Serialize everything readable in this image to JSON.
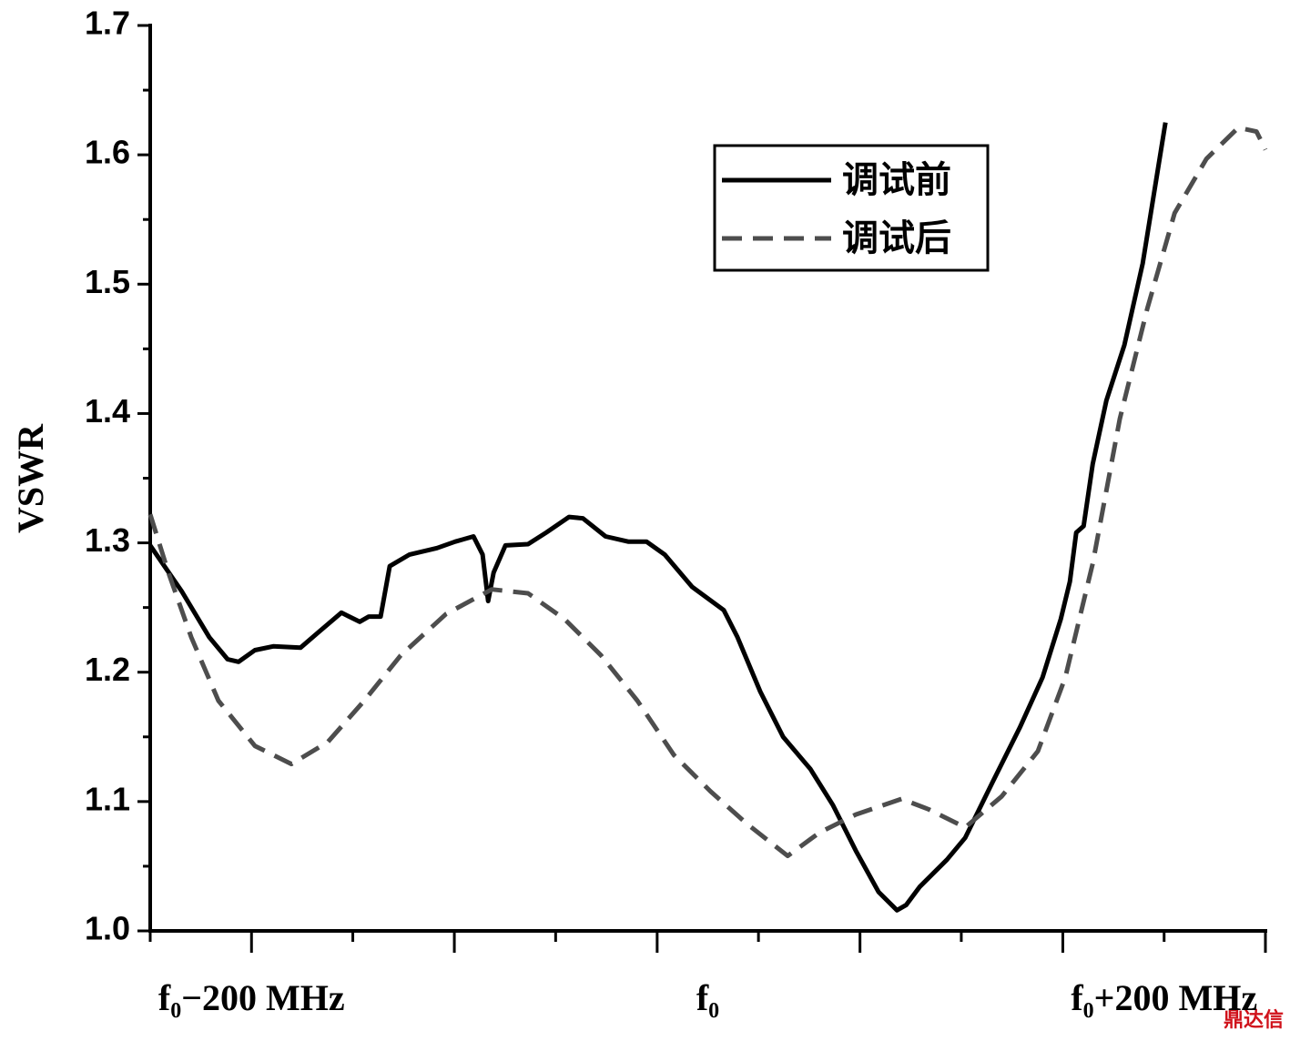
{
  "chart_data": {
    "type": "line",
    "y_label": "VSWR",
    "xlim": [
      -244.4,
      244.4
    ],
    "ylim": [
      1.0,
      1.7
    ],
    "yticks": [
      {
        "value": 1.0,
        "label": "1.0"
      },
      1.1,
      1.2,
      1.3,
      1.4,
      1.5,
      1.6,
      1.7
    ],
    "yminor_ticks": [
      1.05,
      1.15,
      1.25,
      1.35,
      1.45,
      1.55,
      1.65
    ],
    "xticks": [
      {
        "value": -200,
        "label": "f₀−200 MHz"
      },
      {
        "value": 0,
        "label": "f₀"
      },
      {
        "value": 200,
        "label": "f₀+200 MHz"
      }
    ],
    "xminor_ticks": [
      -244.4,
      -200,
      -155.6,
      -111.1,
      -66.7,
      -22.2,
      22.2,
      66.7,
      111.1,
      155.6,
      200,
      244.4
    ],
    "legend_position": "upper right",
    "series": [
      {
        "name": "调试前",
        "color": "#000000",
        "dash": "solid",
        "x": [
          -244.4,
          -230.4,
          -218.5,
          -210.5,
          -205.7,
          -198.5,
          -190.5,
          -178.5,
          -170.6,
          -160.6,
          -152.6,
          -148.6,
          -143.4,
          -139.4,
          -130.7,
          -118.7,
          -110.7,
          -102.7,
          -98.7,
          -96.3,
          -93.9,
          -88.7,
          -78.8,
          -70.8,
          -60.8,
          -54.8,
          -44.8,
          -34.9,
          -26.9,
          -18.9,
          -6.9,
          7.0,
          13.0,
          23.0,
          33.0,
          45.0,
          54.9,
          64.9,
          74.9,
          82.9,
          86.9,
          92.8,
          104.8,
          112.8,
          124.8,
          136.7,
          146.7,
          154.7,
          158.7,
          161.5,
          164.7,
          168.7,
          174.7,
          182.6,
          190.6,
          200.6
        ],
        "values": [
          1.298,
          1.262,
          1.227,
          1.21,
          1.208,
          1.217,
          1.22,
          1.219,
          1.231,
          1.246,
          1.239,
          1.243,
          1.243,
          1.282,
          1.291,
          1.296,
          1.301,
          1.305,
          1.291,
          1.255,
          1.277,
          1.298,
          1.299,
          1.308,
          1.32,
          1.319,
          1.305,
          1.301,
          1.301,
          1.291,
          1.266,
          1.248,
          1.227,
          1.185,
          1.15,
          1.125,
          1.097,
          1.062,
          1.03,
          1.016,
          1.02,
          1.034,
          1.055,
          1.072,
          1.115,
          1.157,
          1.196,
          1.241,
          1.27,
          1.308,
          1.313,
          1.361,
          1.41,
          1.453,
          1.516,
          1.625
        ]
      },
      {
        "name": "调试后",
        "color": "#4d4d4d",
        "dash": "dashed",
        "x": [
          -244.4,
          -236.4,
          -226.4,
          -214.5,
          -198.5,
          -182.5,
          -166.6,
          -150.6,
          -134.6,
          -114.7,
          -94.7,
          -78.8,
          -62.8,
          -46.8,
          -30.9,
          -14.9,
          1.1,
          17.0,
          35.0,
          48.9,
          64.9,
          84.9,
          96.8,
          112.8,
          128.8,
          144.7,
          156.7,
          168.7,
          180.6,
          192.6,
          204.6,
          218.6,
          232.5,
          240.5,
          244.4
        ],
        "values": [
          1.322,
          1.277,
          1.227,
          1.178,
          1.143,
          1.129,
          1.146,
          1.178,
          1.213,
          1.245,
          1.264,
          1.261,
          1.241,
          1.213,
          1.178,
          1.136,
          1.108,
          1.083,
          1.058,
          1.076,
          1.09,
          1.102,
          1.094,
          1.08,
          1.104,
          1.139,
          1.196,
          1.284,
          1.396,
          1.481,
          1.555,
          1.597,
          1.621,
          1.618,
          1.604
        ]
      }
    ],
    "watermark": "鼎达信"
  }
}
